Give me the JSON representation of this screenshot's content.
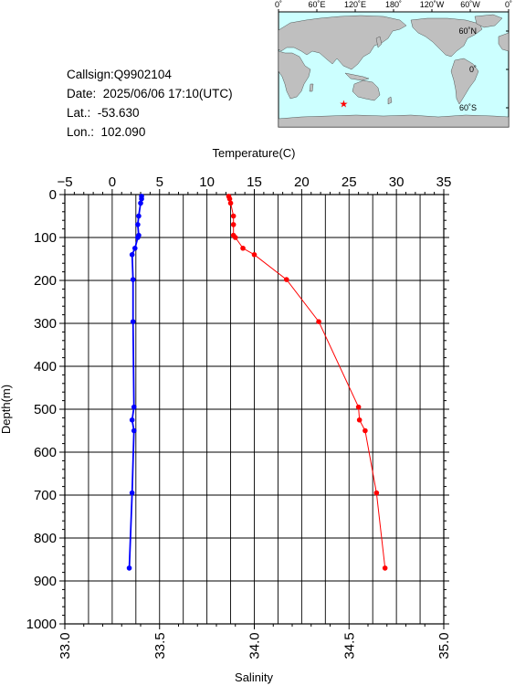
{
  "info": {
    "callsign": "Callsign:Q9902104",
    "date": "Date:  2025/06/06 17:10(UTC)",
    "lat": "Lat.:  -53.630",
    "lon": "Lon.:  102.090"
  },
  "map": {
    "top_labels": [
      "0˚",
      "60˚E",
      "120˚E",
      "180˚",
      "120˚W",
      "60˚W",
      "0˚"
    ],
    "right_labels": [
      "60˚N",
      "0˚",
      "60˚S"
    ],
    "ocean_color": "#ccffff",
    "land_color": "#bfbfbf",
    "marker_color": "#ff0000",
    "marker_lon": 102.09,
    "marker_lat": -53.63
  },
  "chart_data": {
    "type": "line",
    "title": "",
    "top_axis": {
      "label": "Temperature(C)",
      "range": [
        -5,
        35
      ],
      "ticks": [
        "-5",
        "0",
        "5",
        "10",
        "15",
        "20",
        "25",
        "30",
        "35"
      ]
    },
    "bottom_axis": {
      "label": "Salinity",
      "range": [
        33.0,
        35.0
      ],
      "ticks": [
        "33.0",
        "33.5",
        "34.0",
        "34.5",
        "35.0"
      ]
    },
    "y_axis": {
      "label": "Depth(m)",
      "range": [
        0,
        1000
      ],
      "inverted": true,
      "ticks": [
        "0",
        "100",
        "200",
        "300",
        "400",
        "500",
        "600",
        "700",
        "800",
        "900",
        "1000"
      ]
    },
    "grid": true,
    "series": [
      {
        "axis": "temperature",
        "color": "#ff0000",
        "points": [
          {
            "depth": 4,
            "value": 12.3
          },
          {
            "depth": 10,
            "value": 12.4
          },
          {
            "depth": 20,
            "value": 12.5
          },
          {
            "depth": 50,
            "value": 12.8
          },
          {
            "depth": 70,
            "value": 12.8
          },
          {
            "depth": 95,
            "value": 12.8
          },
          {
            "depth": 100,
            "value": 13.0
          },
          {
            "depth": 125,
            "value": 13.8
          },
          {
            "depth": 140,
            "value": 15.0
          },
          {
            "depth": 198,
            "value": 18.4
          },
          {
            "depth": 296,
            "value": 21.8
          },
          {
            "depth": 495,
            "value": 26.0
          },
          {
            "depth": 525,
            "value": 26.1
          },
          {
            "depth": 550,
            "value": 26.7
          },
          {
            "depth": 695,
            "value": 27.9
          },
          {
            "depth": 870,
            "value": 28.8
          }
        ]
      },
      {
        "axis": "salinity",
        "color": "#0000ff",
        "points": [
          {
            "depth": 4,
            "value": 33.405
          },
          {
            "depth": 10,
            "value": 33.405
          },
          {
            "depth": 20,
            "value": 33.4
          },
          {
            "depth": 50,
            "value": 33.39
          },
          {
            "depth": 70,
            "value": 33.385
          },
          {
            "depth": 95,
            "value": 33.39
          },
          {
            "depth": 100,
            "value": 33.385
          },
          {
            "depth": 125,
            "value": 33.37
          },
          {
            "depth": 140,
            "value": 33.355
          },
          {
            "depth": 198,
            "value": 33.36
          },
          {
            "depth": 296,
            "value": 33.36
          },
          {
            "depth": 495,
            "value": 33.365
          },
          {
            "depth": 525,
            "value": 33.355
          },
          {
            "depth": 550,
            "value": 33.365
          },
          {
            "depth": 695,
            "value": 33.355
          },
          {
            "depth": 870,
            "value": 33.34
          }
        ]
      }
    ]
  }
}
